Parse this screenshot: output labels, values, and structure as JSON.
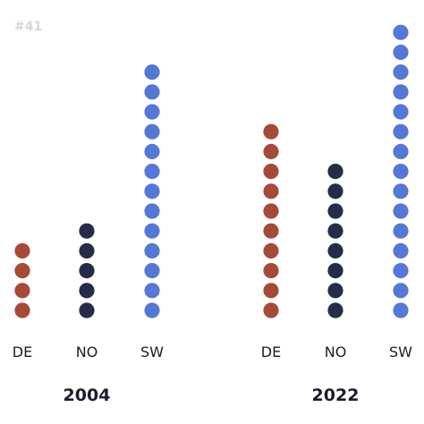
{
  "tag": "#41",
  "colors": {
    "DE": "#a64a37",
    "NO": "#262c48",
    "SW": "#5578d6",
    "tag": "#d5d7dc",
    "text": "#1b1d2a"
  },
  "chart_data": {
    "type": "dot",
    "title": "",
    "groups": [
      "2004",
      "2022"
    ],
    "categories": [
      "DE",
      "NO",
      "SW"
    ],
    "series": [
      {
        "group": "2004",
        "values": {
          "DE": 4,
          "NO": 5,
          "SW": 13
        }
      },
      {
        "group": "2022",
        "values": {
          "DE": 10,
          "NO": 8,
          "SW": 15
        }
      }
    ],
    "legend": "none",
    "grid": false
  }
}
